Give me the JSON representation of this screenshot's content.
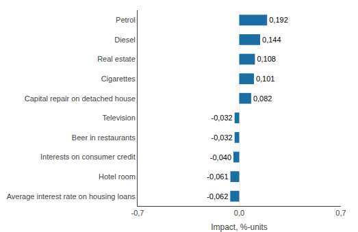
{
  "chart_data": {
    "type": "bar",
    "orientation": "horizontal",
    "categories": [
      "Average interest rate on housing loans",
      "Hotel room",
      "Interests on consumer credit",
      "Beer in restaurants",
      "Television",
      "Capital repair on detached house",
      "Cigarettes",
      "Real estate",
      "Diesel",
      "Petrol"
    ],
    "values": [
      -0.062,
      -0.061,
      -0.04,
      -0.032,
      -0.032,
      0.082,
      0.101,
      0.108,
      0.144,
      0.192
    ],
    "value_labels": [
      "-0,062",
      "-0,061",
      "-0,040",
      "-0,032",
      "-0,032",
      "0,082",
      "0,101",
      "0,108",
      "0,144",
      "0,192"
    ],
    "data_labels": true,
    "color": "#1a6ea3",
    "xlabel": "Impact, %-units",
    "xlim": [
      -0.7,
      0.7
    ],
    "xticks": [
      {
        "value": -0.7,
        "label": "-0,7"
      },
      {
        "value": 0.0,
        "label": "0,0"
      },
      {
        "value": 0.7,
        "label": "0,7"
      }
    ],
    "grid": true
  }
}
